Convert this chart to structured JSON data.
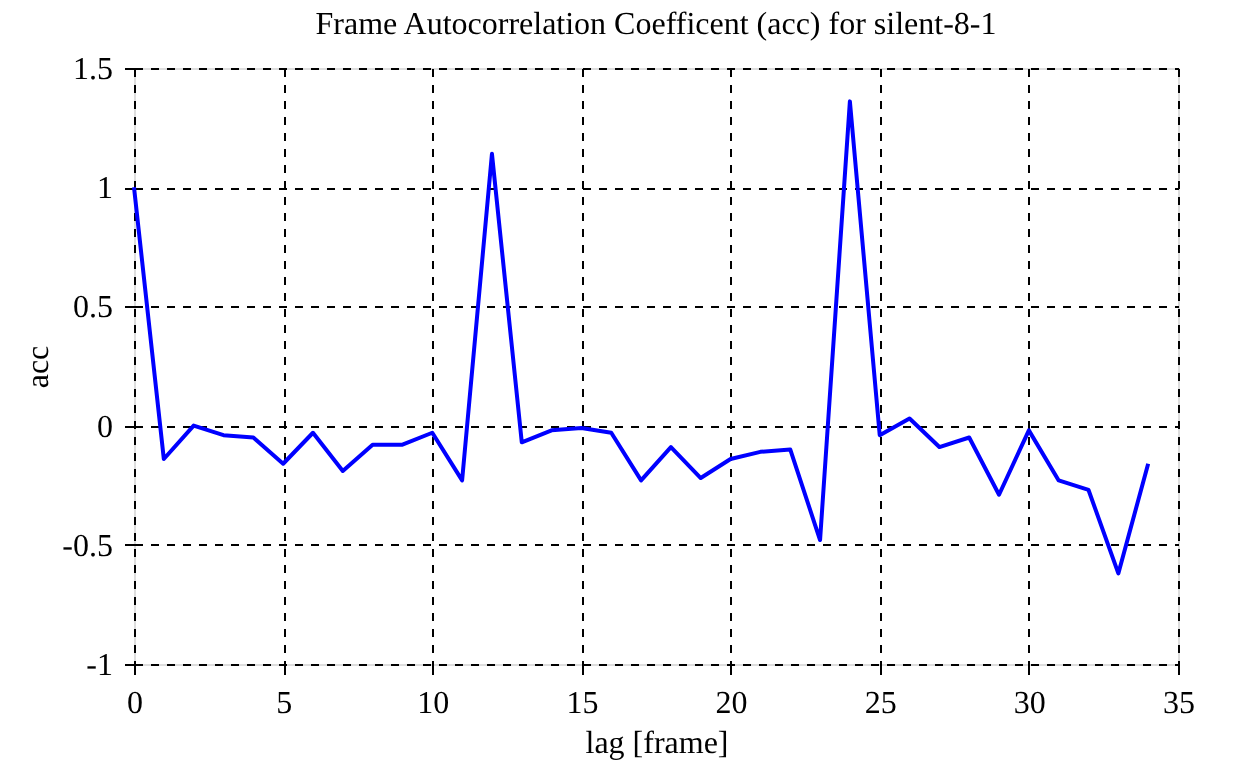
{
  "chart_data": {
    "type": "line",
    "title": "Frame Autocorrelation Coefficent (acc) for silent-8-1",
    "xlabel": "lag [frame]",
    "ylabel": "acc",
    "x": [
      0,
      1,
      2,
      3,
      4,
      5,
      6,
      7,
      8,
      9,
      10,
      11,
      12,
      13,
      14,
      15,
      16,
      17,
      18,
      19,
      20,
      21,
      22,
      23,
      24,
      25,
      26,
      27,
      28,
      29,
      30,
      31,
      32,
      33,
      34
    ],
    "series": [
      {
        "color": "#0000ff",
        "values": [
          1,
          -0.14,
          0,
          -0.04,
          -0.05,
          -0.16,
          -0.03,
          -0.19,
          -0.08,
          -0.08,
          -0.03,
          -0.23,
          1.14,
          -0.07,
          -0.02,
          -0.01,
          -0.03,
          -0.23,
          -0.09,
          -0.22,
          -0.14,
          -0.11,
          -0.1,
          -0.48,
          1.36,
          -0.04,
          0.03,
          -0.09,
          -0.05,
          -0.29,
          -0.02,
          -0.23,
          -0.27,
          -0.62,
          -0.16
        ]
      }
    ],
    "xlim": [
      0,
      35
    ],
    "xticks": [
      0,
      5,
      10,
      15,
      20,
      25,
      30,
      35
    ],
    "ylim": [
      -1,
      1.5
    ],
    "yticks": [
      -1,
      -0.5,
      0,
      0.5,
      1,
      1.5
    ],
    "grid": true,
    "legend": false,
    "marker": "none",
    "line_style": "solid"
  }
}
